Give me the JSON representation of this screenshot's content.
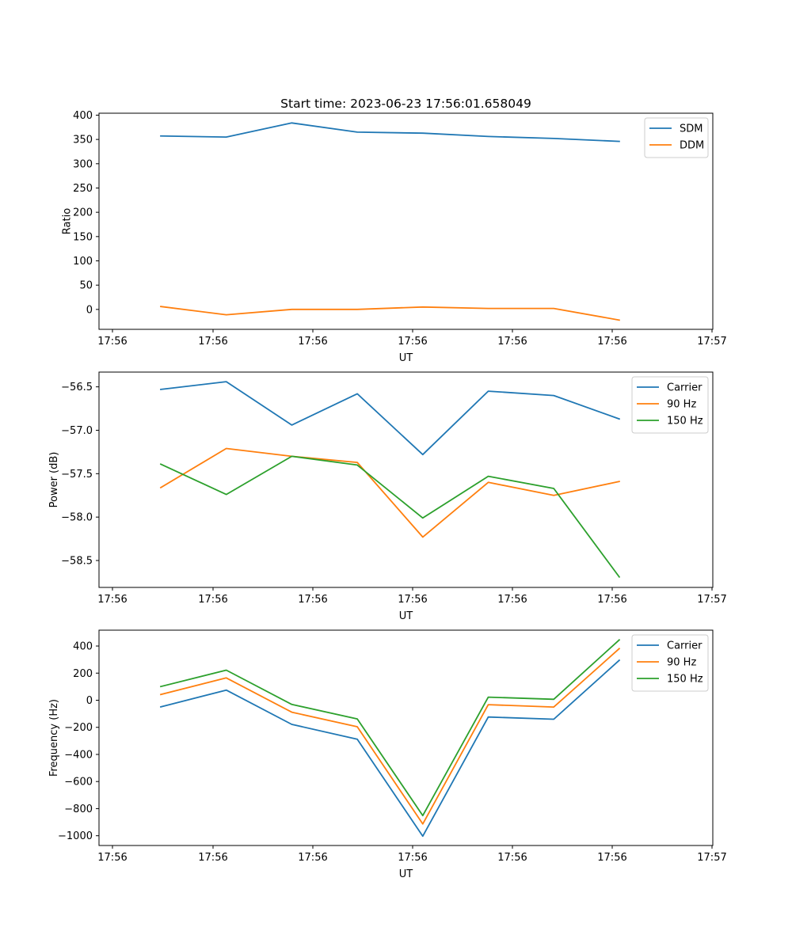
{
  "title": "Start time: 2023-06-23 17:56:01.658049",
  "chart_data": [
    {
      "type": "line",
      "title": "Start time: 2023-06-23 17:56:01.658049",
      "xlabel": "UT",
      "ylabel": "Ratio",
      "x_tick_labels": [
        "17:56",
        "17:56",
        "17:56",
        "17:56",
        "17:56",
        "17:56",
        "17:57"
      ],
      "yticks": [
        0,
        50,
        100,
        150,
        200,
        250,
        300,
        350,
        400
      ],
      "ylim": [
        -41,
        404
      ],
      "legend_position": "upper right",
      "series": [
        {
          "name": "SDM",
          "color": "#1f77b4",
          "values": [
            357,
            355,
            384,
            365,
            363,
            356,
            352,
            346
          ]
        },
        {
          "name": "DDM",
          "color": "#ff7f0e",
          "values": [
            6,
            -11,
            0,
            0,
            5,
            2,
            2,
            -22
          ]
        }
      ]
    },
    {
      "type": "line",
      "title": "",
      "xlabel": "UT",
      "ylabel": "Power (dB)",
      "x_tick_labels": [
        "17:56",
        "17:56",
        "17:56",
        "17:56",
        "17:56",
        "17:56",
        "17:57"
      ],
      "yticks": [
        -56.5,
        -57.0,
        -57.5,
        -58.0,
        -58.5
      ],
      "ytick_labels": [
        "−56.5",
        "−57.0",
        "−57.5",
        "−58.0",
        "−58.5"
      ],
      "ylim": [
        -58.81,
        -56.33
      ],
      "legend_position": "upper right",
      "series": [
        {
          "name": "Carrier",
          "color": "#1f77b4",
          "values": [
            -56.53,
            -56.44,
            -56.94,
            -56.58,
            -57.28,
            -56.55,
            -56.6,
            -56.87
          ]
        },
        {
          "name": "90 Hz",
          "color": "#ff7f0e",
          "values": [
            -57.66,
            -57.21,
            -57.3,
            -57.37,
            -58.23,
            -57.6,
            -57.75,
            -57.59
          ]
        },
        {
          "name": "150 Hz",
          "color": "#2ca02c",
          "values": [
            -57.39,
            -57.74,
            -57.3,
            -57.4,
            -58.01,
            -57.53,
            -57.67,
            -58.69
          ]
        }
      ]
    },
    {
      "type": "line",
      "title": "",
      "xlabel": "UT",
      "ylabel": "Frequency (Hz)",
      "x_tick_labels": [
        "17:56",
        "17:56",
        "17:56",
        "17:56",
        "17:56",
        "17:56",
        "17:57"
      ],
      "yticks": [
        400,
        200,
        0,
        -200,
        -400,
        -600,
        -800,
        -1000
      ],
      "ytick_labels": [
        "400",
        "200",
        "0",
        "−200",
        "−400",
        "−600",
        "−800",
        "−1000"
      ],
      "ylim": [
        -1072,
        517
      ],
      "legend_position": "upper right",
      "series": [
        {
          "name": "Carrier",
          "color": "#1f77b4",
          "values": [
            -49,
            75,
            -178,
            -288,
            -1003,
            -124,
            -140,
            295
          ]
        },
        {
          "name": "90 Hz",
          "color": "#ff7f0e",
          "values": [
            42,
            165,
            -88,
            -196,
            -913,
            -33,
            -50,
            381
          ]
        },
        {
          "name": "150 Hz",
          "color": "#2ca02c",
          "values": [
            101,
            222,
            -31,
            -138,
            -851,
            23,
            7,
            445
          ]
        }
      ]
    }
  ]
}
